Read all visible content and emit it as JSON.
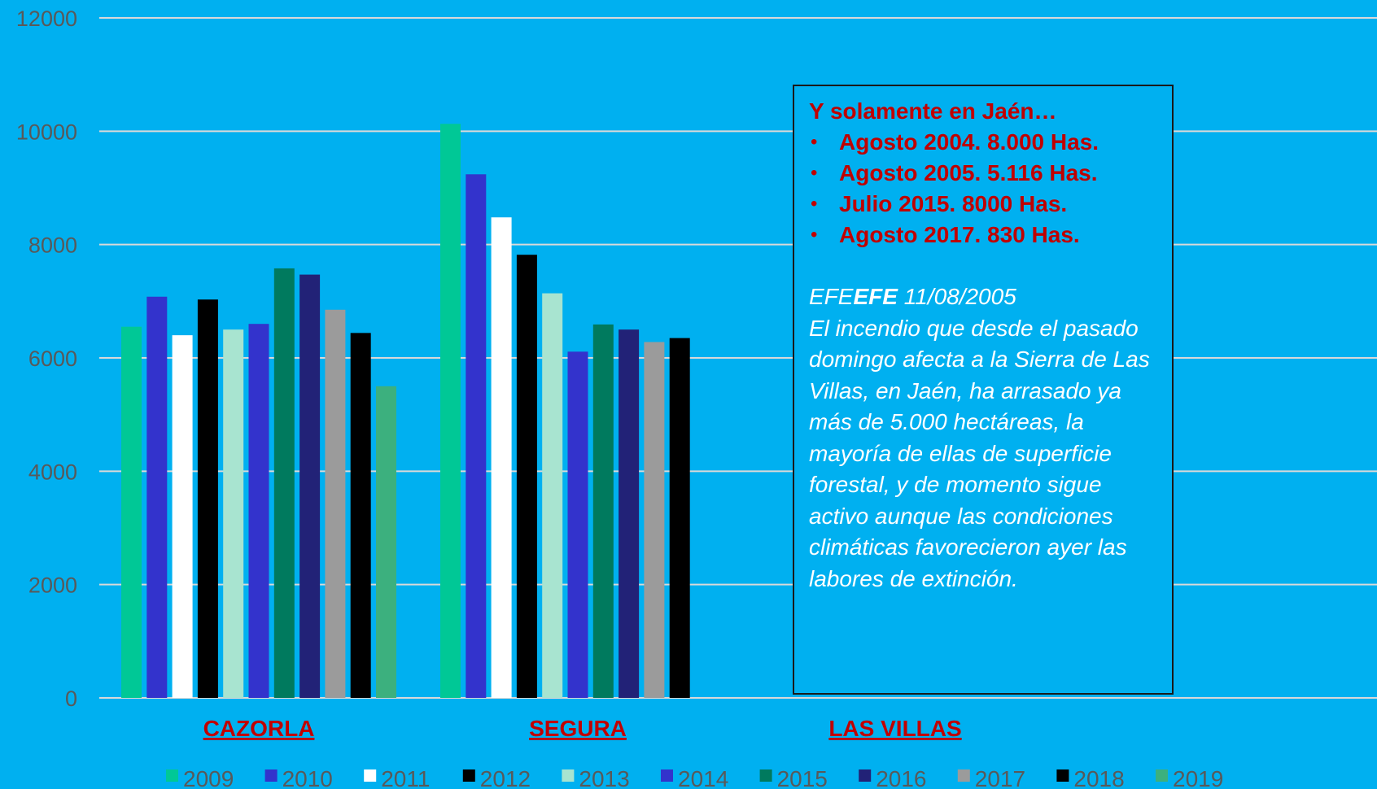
{
  "chart_data": {
    "type": "bar",
    "title": "",
    "xlabel": "",
    "ylabel": "",
    "ylim": [
      0,
      12000
    ],
    "yticks": [
      0,
      2000,
      4000,
      6000,
      8000,
      10000,
      12000
    ],
    "grid": true,
    "legend_position": "bottom",
    "categories": [
      "CAZORLA",
      "SEGURA",
      "LAS VILLAS"
    ],
    "series": [
      {
        "name": "2009",
        "color": "#00C896",
        "values": [
          6550,
          10130,
          null
        ]
      },
      {
        "name": "2010",
        "color": "#3333CC",
        "values": [
          7080,
          9240,
          null
        ]
      },
      {
        "name": "2011",
        "color": "#FFFFFF",
        "values": [
          6400,
          8480,
          null
        ]
      },
      {
        "name": "2012",
        "color": "#000000",
        "values": [
          7030,
          7820,
          null
        ]
      },
      {
        "name": "2013",
        "color": "#A8E4D0",
        "values": [
          6500,
          7140,
          null
        ]
      },
      {
        "name": "2014",
        "color": "#3333CC",
        "values": [
          6600,
          6110,
          null
        ]
      },
      {
        "name": "2015",
        "color": "#007A5E",
        "values": [
          7580,
          6590,
          null
        ]
      },
      {
        "name": "2016",
        "color": "#222277",
        "values": [
          7470,
          6500,
          null
        ]
      },
      {
        "name": "2017",
        "color": "#9B9B9B",
        "values": [
          6850,
          6280,
          null
        ]
      },
      {
        "name": "2018",
        "color": "#000000",
        "values": [
          6440,
          6350,
          null
        ]
      },
      {
        "name": "2019",
        "color": "#3CB07E",
        "values": [
          5500,
          null,
          null
        ]
      }
    ]
  },
  "info_box": {
    "heading": "Y solamente en Jaén…",
    "items": [
      "Agosto 2004. 8.000 Has.",
      "Agosto 2005. 5.116 Has.",
      "Julio 2015. 8000 Has.",
      "Agosto 2017. 830 Has."
    ],
    "source_prefix": "EFE",
    "source_bold": "EFE",
    "source_date": " 11/08/2005",
    "quote": "El incendio que desde el pasado domingo afecta a la Sierra de Las Villas, en Jaén, ha arrasado ya más de 5.000 hectáreas, la mayoría de ellas de superficie forestal, y de momento sigue activo aunque las condiciones climáticas favorecieron ayer las labores de extinción."
  }
}
